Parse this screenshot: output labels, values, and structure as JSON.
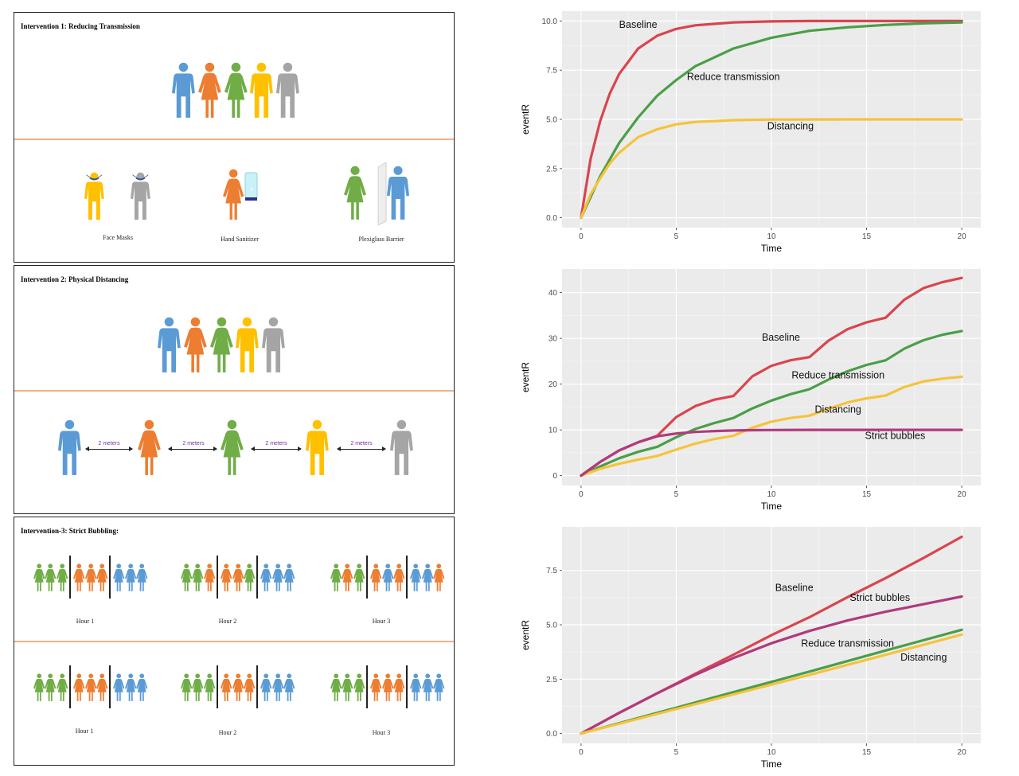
{
  "colors": {
    "blue": "#5b9bd5",
    "orange": "#ed7d31",
    "green": "#70ad47",
    "yellow": "#ffc000",
    "gray": "#a5a5a5",
    "divider": "#f4b183",
    "distance": "#7030a0"
  },
  "panels": [
    {
      "title": "Intervention 1: Reducing Transmission",
      "captions": [
        "Face Masks",
        "Hand Sanitizer",
        "Plexiglass Barrier"
      ]
    },
    {
      "title": "Intervention 2: Physical Distancing",
      "distance_labels": [
        "2 meters",
        "2 meters",
        "2 meters",
        "2 meters"
      ]
    },
    {
      "title": "Intervention-3: Strict Bubbling:",
      "captions_top": [
        "Hour 1",
        "Hour 2",
        "Hour 3"
      ],
      "captions_bottom": [
        "Hour 1",
        "Hour 2",
        "Hour 3"
      ]
    }
  ],
  "chart_data": [
    {
      "type": "line",
      "xlabel": "Time",
      "ylabel": "eventR",
      "xlim": [
        0,
        20
      ],
      "ylim": [
        0,
        10
      ],
      "xticks": [
        0,
        5,
        10,
        15,
        20
      ],
      "yticks": [
        0,
        2.5,
        5,
        7.5,
        10
      ],
      "ytick_labels": [
        "0.0",
        "2.5",
        "5.0",
        "7.5",
        "10.0"
      ],
      "series": [
        {
          "name": "Baseline",
          "color": "#d9454e",
          "label_xy": [
            3,
            9.65
          ],
          "x": [
            0,
            0.5,
            1,
            1.5,
            2,
            3,
            4,
            5,
            6,
            8,
            10,
            12,
            15,
            20
          ],
          "y": [
            0,
            3.0,
            4.9,
            6.3,
            7.3,
            8.6,
            9.25,
            9.6,
            9.78,
            9.93,
            9.98,
            10,
            10,
            10
          ]
        },
        {
          "name": "Reduce transmission",
          "color": "#4a9e48",
          "label_xy": [
            8,
            7.0
          ],
          "x": [
            0,
            1,
            2,
            3,
            4,
            5,
            6,
            8,
            10,
            12,
            14,
            16,
            18,
            20
          ],
          "y": [
            0,
            2.1,
            3.8,
            5.1,
            6.2,
            7.0,
            7.7,
            8.6,
            9.15,
            9.5,
            9.68,
            9.8,
            9.88,
            9.93
          ]
        },
        {
          "name": "Distancing",
          "color": "#f5c33b",
          "label_xy": [
            11,
            4.5
          ],
          "x": [
            0,
            0.5,
            1,
            1.5,
            2,
            3,
            4,
            5,
            6,
            8,
            10,
            15,
            20
          ],
          "y": [
            0,
            1.2,
            2.0,
            2.75,
            3.3,
            4.1,
            4.5,
            4.75,
            4.87,
            4.96,
            4.99,
            5,
            5
          ]
        }
      ]
    },
    {
      "type": "line",
      "xlabel": "Time",
      "ylabel": "eventR",
      "xlim": [
        0,
        20
      ],
      "ylim": [
        0,
        43
      ],
      "xticks": [
        0,
        5,
        10,
        15,
        20
      ],
      "yticks": [
        0,
        10,
        20,
        30,
        40
      ],
      "ytick_labels": [
        "0",
        "10",
        "20",
        "30",
        "40"
      ],
      "series": [
        {
          "name": "Baseline",
          "color": "#d9454e",
          "label_xy": [
            10.5,
            29.5
          ],
          "x": [
            0,
            1,
            2,
            3,
            4,
            5,
            6,
            7,
            8,
            9,
            10,
            11,
            12,
            13,
            14,
            15,
            16,
            17,
            18,
            19,
            20
          ],
          "y": [
            0,
            3,
            5.5,
            7.3,
            8.7,
            12.8,
            15.2,
            16.6,
            17.4,
            21.7,
            24,
            25.2,
            25.9,
            29.5,
            32,
            33.5,
            34.5,
            38.5,
            41,
            42.3,
            43.2
          ]
        },
        {
          "name": "Reduce transmission",
          "color": "#4a9e48",
          "label_xy": [
            13.5,
            21.2
          ],
          "x": [
            0,
            1,
            2,
            3,
            4,
            5,
            6,
            7,
            8,
            9,
            10,
            11,
            12,
            13,
            14,
            15,
            16,
            17,
            18,
            19,
            20
          ],
          "y": [
            0,
            2,
            3.8,
            5.2,
            6.3,
            8.4,
            10.2,
            11.5,
            12.6,
            14.7,
            16.4,
            17.8,
            18.9,
            21,
            22.8,
            24.2,
            25.2,
            27.8,
            29.6,
            30.8,
            31.6
          ]
        },
        {
          "name": "Distancing",
          "color": "#f5c33b",
          "label_xy": [
            13.5,
            13.8
          ],
          "x": [
            0,
            1,
            2,
            3,
            4,
            5,
            6,
            7,
            8,
            9,
            10,
            11,
            12,
            13,
            14,
            15,
            16,
            17,
            18,
            19,
            20
          ],
          "y": [
            0,
            1.5,
            2.6,
            3.5,
            4.3,
            5.7,
            7,
            8,
            8.7,
            10.5,
            11.8,
            12.6,
            13.1,
            14.6,
            16,
            16.9,
            17.5,
            19.4,
            20.6,
            21.2,
            21.6
          ]
        },
        {
          "name": "Strict bubbles",
          "color": "#b03a7d",
          "label_xy": [
            16.5,
            8.0
          ],
          "x": [
            0,
            1,
            2,
            3,
            4,
            5,
            6,
            7,
            8,
            9,
            10,
            12,
            15,
            20
          ],
          "y": [
            0,
            3,
            5.5,
            7.3,
            8.6,
            9.2,
            9.55,
            9.75,
            9.86,
            9.93,
            9.97,
            10,
            10,
            10
          ]
        }
      ]
    },
    {
      "type": "line",
      "xlabel": "Time",
      "ylabel": "eventR",
      "xlim": [
        0,
        20
      ],
      "ylim": [
        0,
        9.05
      ],
      "xticks": [
        0,
        5,
        10,
        15,
        20
      ],
      "yticks": [
        0,
        2.5,
        5,
        7.5
      ],
      "ytick_labels": [
        "0.0",
        "2.5",
        "5.0",
        "7.5"
      ],
      "series": [
        {
          "name": "Baseline",
          "color": "#d9454e",
          "label_xy": [
            11.2,
            6.55
          ],
          "x": [
            0,
            2,
            4,
            6,
            8,
            10,
            12,
            14,
            16,
            18,
            20
          ],
          "y": [
            0,
            0.95,
            1.85,
            2.75,
            3.62,
            4.52,
            5.35,
            6.27,
            7.15,
            8.08,
            9.05
          ]
        },
        {
          "name": "Strict bubbles",
          "color": "#b03a7d",
          "label_xy": [
            15.7,
            6.1
          ],
          "x": [
            0,
            2,
            4,
            6,
            8,
            10,
            12,
            14,
            16,
            18,
            20
          ],
          "y": [
            0,
            0.95,
            1.85,
            2.7,
            3.47,
            4.15,
            4.72,
            5.2,
            5.6,
            5.95,
            6.3
          ]
        },
        {
          "name": "Reduce transmission",
          "color": "#4a9e48",
          "label_xy": [
            14,
            4.0
          ],
          "x": [
            0,
            4,
            8,
            12,
            16,
            20
          ],
          "y": [
            0,
            0.95,
            1.9,
            2.85,
            3.82,
            4.77
          ]
        },
        {
          "name": "Distancing",
          "color": "#f5c33b",
          "label_xy": [
            18,
            3.35
          ],
          "x": [
            0,
            4,
            8,
            12,
            16,
            20
          ],
          "y": [
            0,
            0.9,
            1.8,
            2.7,
            3.62,
            4.55
          ]
        }
      ]
    }
  ]
}
